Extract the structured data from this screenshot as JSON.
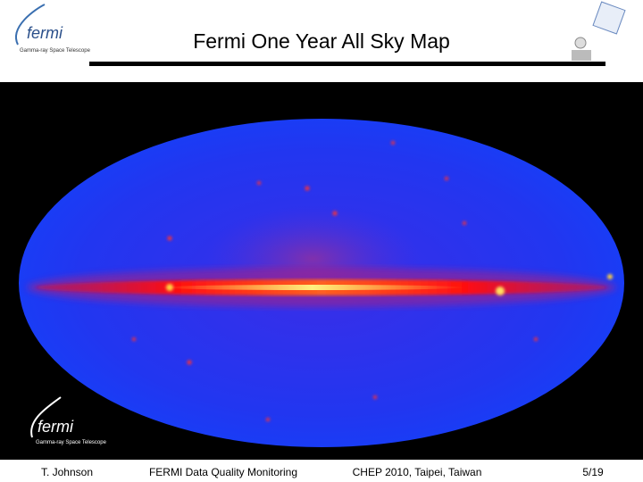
{
  "header": {
    "title": "Fermi One Year All Sky Map"
  },
  "logos": {
    "top_left": {
      "name": "fermi",
      "subtitle": "Gamma-ray Space Telescope"
    },
    "bottom_left": {
      "name": "fermi",
      "subtitle": "Gamma-ray Space Telescope"
    }
  },
  "footer": {
    "author": "T. Johnson",
    "project": "FERMI Data Quality Monitoring",
    "event": "CHEP 2010, Taipei, Taiwan",
    "page": "5/19"
  }
}
